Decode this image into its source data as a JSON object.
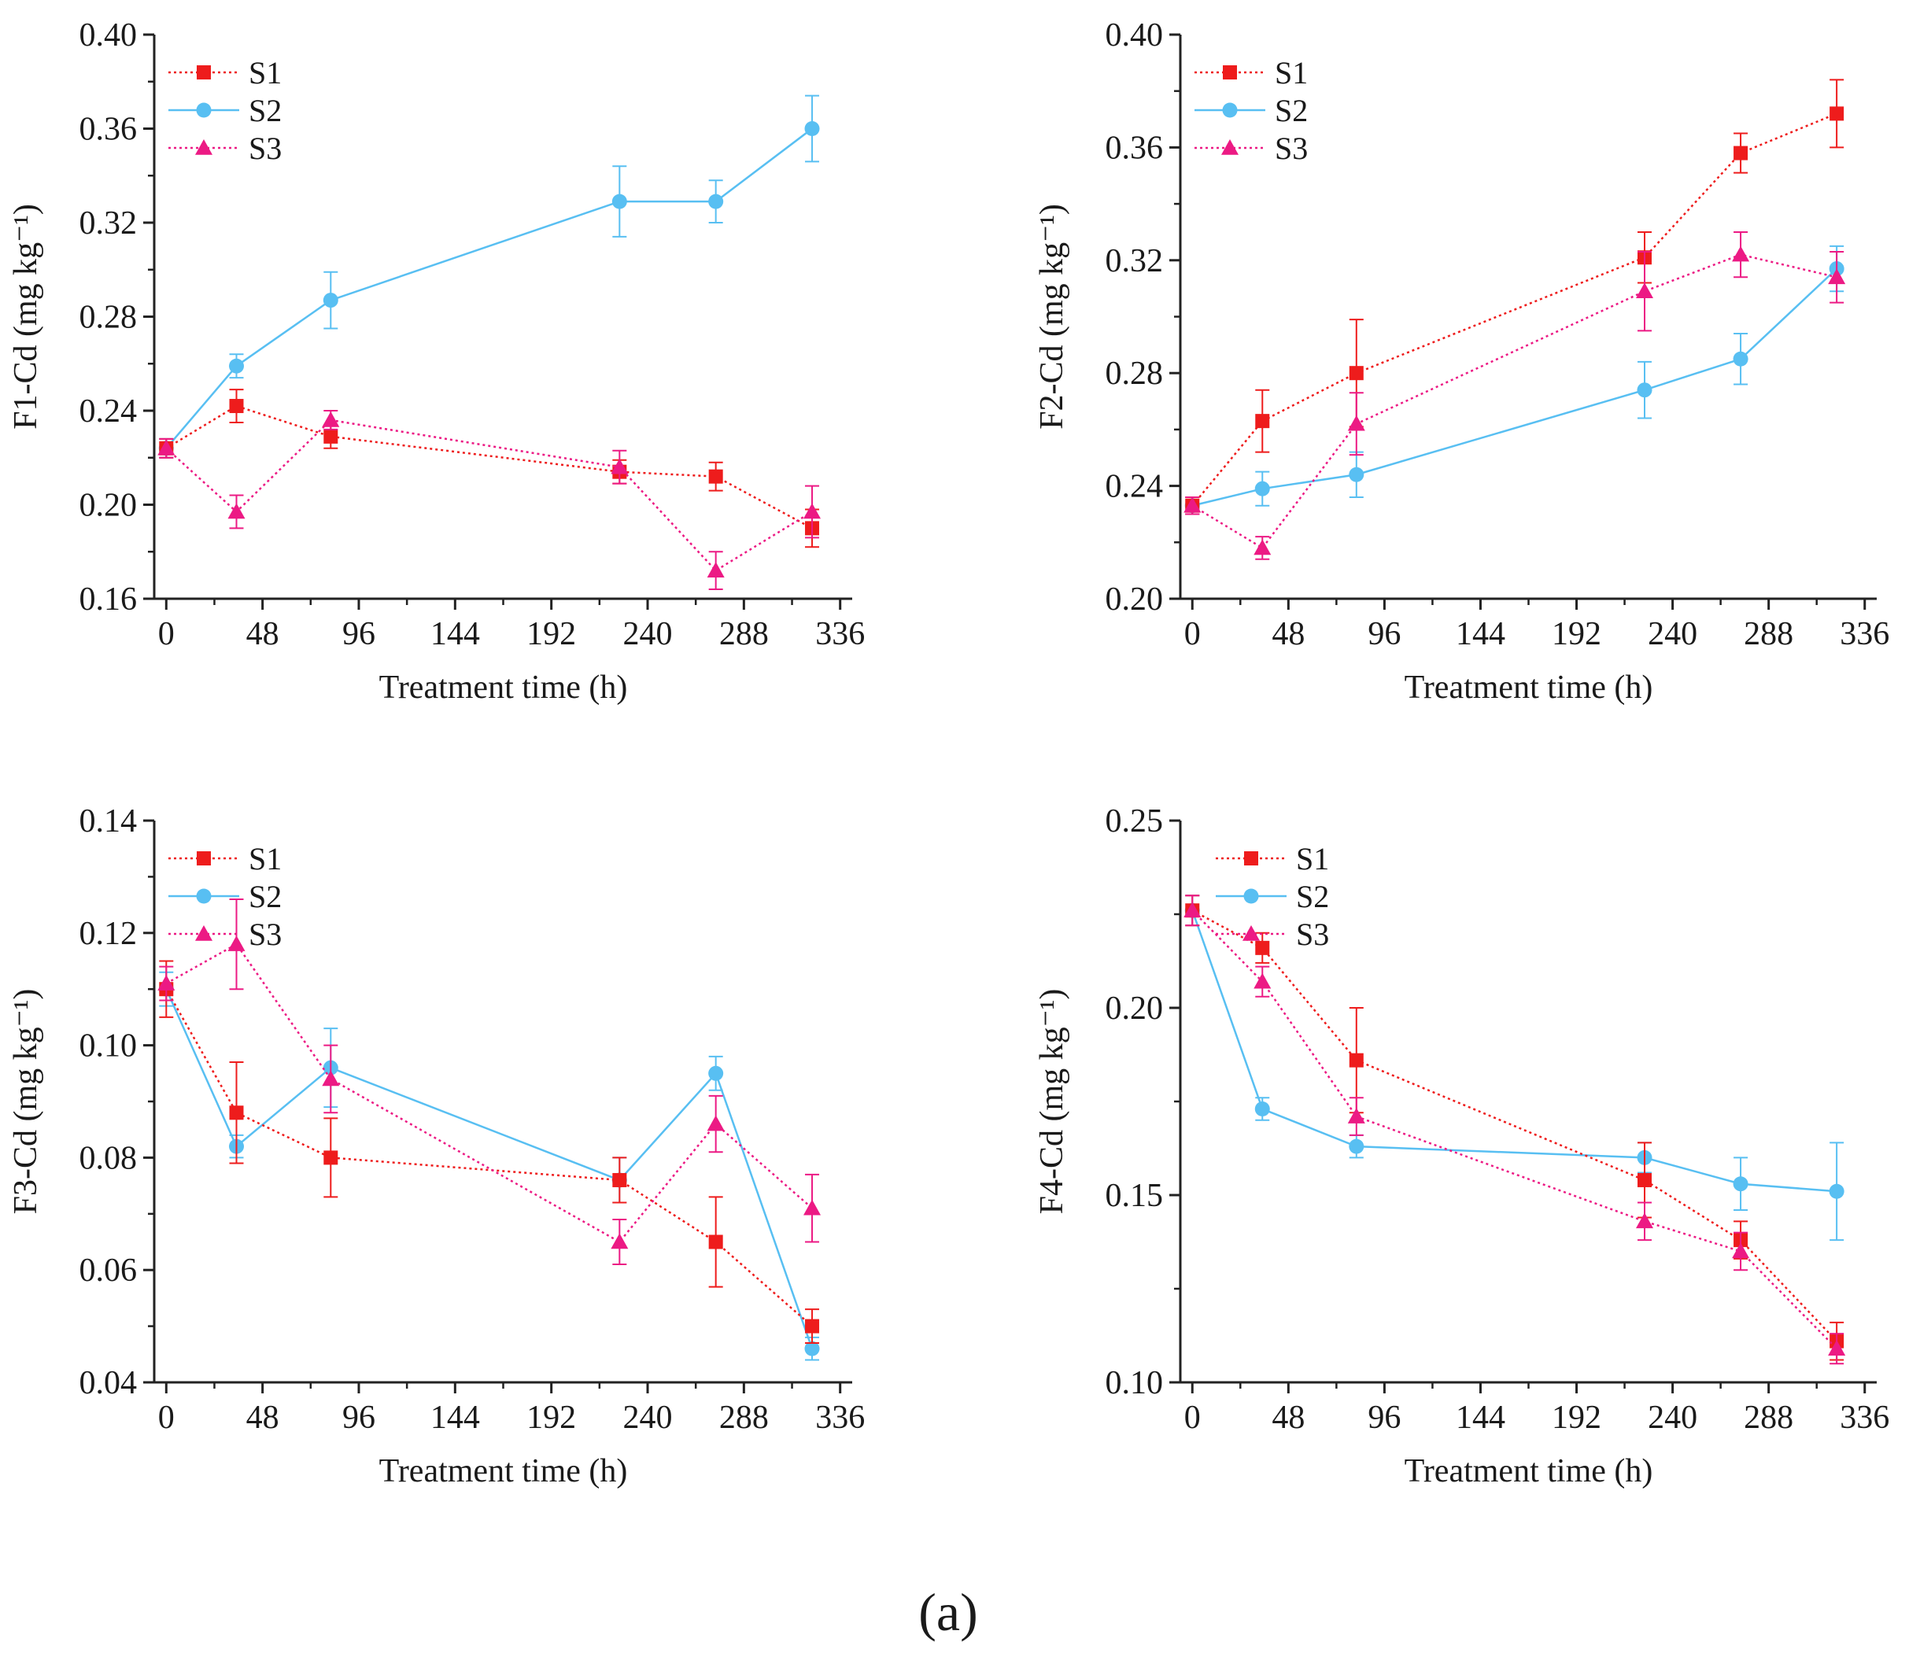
{
  "figure_label": "(a)",
  "colors": {
    "S1": "#ee1c1c",
    "S2": "#58bff2",
    "S3": "#ec1a84",
    "axis": "#222222"
  },
  "chart_data": [
    {
      "type": "line",
      "id": "f1",
      "ylabel": "F1-Cd (mg kg⁻¹)",
      "xlabel": "Treatment time (h)",
      "xlim": [
        -6,
        342
      ],
      "ylim": [
        0.16,
        0.4
      ],
      "xticks": [
        0,
        48,
        96,
        144,
        192,
        240,
        288,
        336
      ],
      "yticks": [
        0.16,
        0.2,
        0.24,
        0.28,
        0.32,
        0.36,
        0.4
      ],
      "legend_position": "top-left",
      "x": [
        0,
        35,
        82,
        226,
        274,
        322
      ],
      "series": [
        {
          "name": "S1",
          "marker": "square",
          "style": "dotted",
          "values": [
            0.224,
            0.242,
            0.229,
            0.214,
            0.212,
            0.19
          ],
          "errors": [
            0.004,
            0.007,
            0.005,
            0.005,
            0.006,
            0.008
          ]
        },
        {
          "name": "S2",
          "marker": "circle",
          "style": "solid",
          "values": [
            0.224,
            0.259,
            0.287,
            0.329,
            0.329,
            0.36
          ],
          "errors": [
            0.004,
            0.005,
            0.012,
            0.015,
            0.009,
            0.014
          ]
        },
        {
          "name": "S3",
          "marker": "triangle",
          "style": "dotted",
          "values": [
            0.224,
            0.197,
            0.236,
            0.216,
            0.172,
            0.197
          ],
          "errors": [
            0.004,
            0.007,
            0.004,
            0.007,
            0.008,
            0.011
          ]
        }
      ]
    },
    {
      "type": "line",
      "id": "f2",
      "ylabel": "F2-Cd (mg kg⁻¹)",
      "xlabel": "Treatment time (h)",
      "xlim": [
        -6,
        342
      ],
      "ylim": [
        0.2,
        0.4
      ],
      "xticks": [
        0,
        48,
        96,
        144,
        192,
        240,
        288,
        336
      ],
      "yticks": [
        0.2,
        0.24,
        0.28,
        0.32,
        0.36,
        0.4
      ],
      "legend_position": "top-left",
      "x": [
        0,
        35,
        82,
        226,
        274,
        322
      ],
      "series": [
        {
          "name": "S1",
          "marker": "square",
          "style": "dotted",
          "values": [
            0.233,
            0.263,
            0.28,
            0.321,
            0.358,
            0.372
          ],
          "errors": [
            0.003,
            0.011,
            0.019,
            0.009,
            0.007,
            0.012
          ]
        },
        {
          "name": "S2",
          "marker": "circle",
          "style": "solid",
          "values": [
            0.233,
            0.239,
            0.244,
            0.274,
            0.285,
            0.317
          ],
          "errors": [
            0.003,
            0.006,
            0.008,
            0.01,
            0.009,
            0.008
          ]
        },
        {
          "name": "S3",
          "marker": "triangle",
          "style": "dotted",
          "values": [
            0.233,
            0.218,
            0.262,
            0.309,
            0.322,
            0.314
          ],
          "errors": [
            0.003,
            0.004,
            0.011,
            0.014,
            0.008,
            0.009
          ]
        }
      ]
    },
    {
      "type": "line",
      "id": "f3",
      "ylabel": "F3-Cd (mg kg⁻¹)",
      "xlabel": "Treatment time (h)",
      "xlim": [
        -6,
        342
      ],
      "ylim": [
        0.04,
        0.14
      ],
      "xticks": [
        0,
        48,
        96,
        144,
        192,
        240,
        288,
        336
      ],
      "yticks": [
        0.04,
        0.06,
        0.08,
        0.1,
        0.12,
        0.14
      ],
      "legend_position": "top-left",
      "x": [
        0,
        35,
        82,
        226,
        274,
        322
      ],
      "series": [
        {
          "name": "S1",
          "marker": "square",
          "style": "dotted",
          "values": [
            0.11,
            0.088,
            0.08,
            0.076,
            0.065,
            0.05
          ],
          "errors": [
            0.005,
            0.009,
            0.007,
            0.004,
            0.008,
            0.003
          ]
        },
        {
          "name": "S2",
          "marker": "circle",
          "style": "solid",
          "values": [
            0.11,
            0.082,
            0.096,
            0.076,
            0.095,
            0.046
          ],
          "errors": [
            0.003,
            0.002,
            0.007,
            0.004,
            0.003,
            0.002
          ]
        },
        {
          "name": "S3",
          "marker": "triangle",
          "style": "dotted",
          "values": [
            0.111,
            0.118,
            0.094,
            0.065,
            0.086,
            0.071
          ],
          "errors": [
            0.003,
            0.008,
            0.006,
            0.004,
            0.005,
            0.006
          ]
        }
      ]
    },
    {
      "type": "line",
      "id": "f4",
      "ylabel": "F4-Cd (mg kg⁻¹)",
      "xlabel": "Treatment time (h)",
      "xlim": [
        -6,
        342
      ],
      "ylim": [
        0.1,
        0.25
      ],
      "xticks": [
        0,
        48,
        96,
        144,
        192,
        240,
        288,
        336
      ],
      "yticks": [
        0.1,
        0.15,
        0.2,
        0.25
      ],
      "legend_position": "top-left",
      "x": [
        0,
        35,
        82,
        226,
        274,
        322
      ],
      "series": [
        {
          "name": "S1",
          "marker": "square",
          "style": "dotted",
          "values": [
            0.226,
            0.216,
            0.186,
            0.154,
            0.138,
            0.111
          ],
          "errors": [
            0.004,
            0.004,
            0.014,
            0.01,
            0.005,
            0.005
          ]
        },
        {
          "name": "S2",
          "marker": "circle",
          "style": "solid",
          "values": [
            0.226,
            0.173,
            0.163,
            0.16,
            0.153,
            0.151
          ],
          "errors": [
            0.004,
            0.003,
            0.003,
            0.004,
            0.007,
            0.013
          ]
        },
        {
          "name": "S3",
          "marker": "triangle",
          "style": "dotted",
          "values": [
            0.226,
            0.207,
            0.171,
            0.143,
            0.135,
            0.109
          ],
          "errors": [
            0.004,
            0.004,
            0.005,
            0.005,
            0.005,
            0.004
          ]
        }
      ]
    }
  ]
}
